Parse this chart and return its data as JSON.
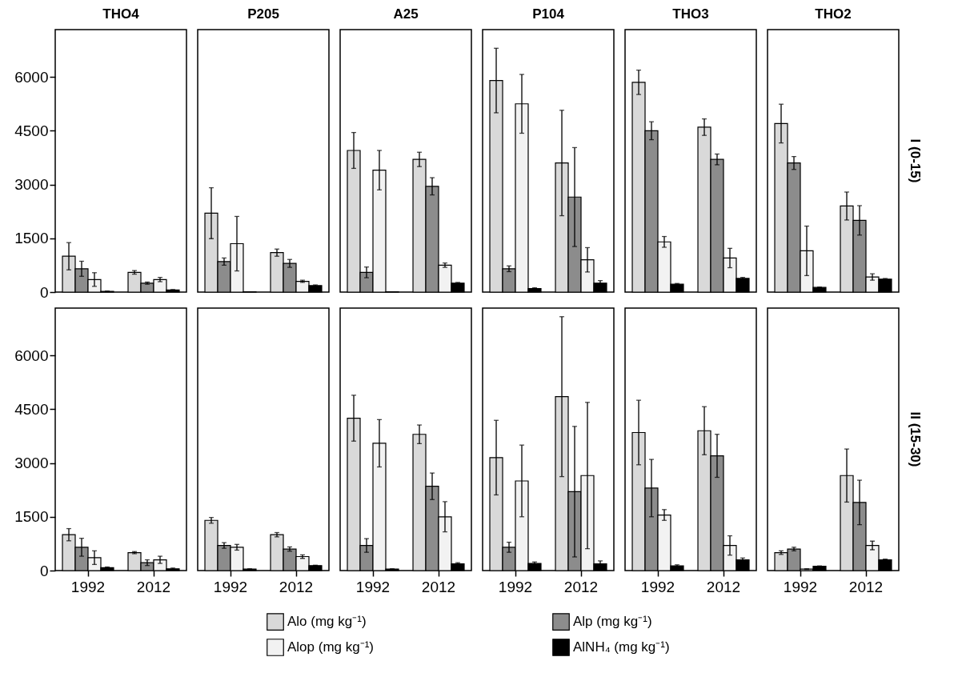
{
  "chart_data": [
    {
      "type": "bar",
      "title": "THO4",
      "categories": [
        "1992",
        "2012"
      ],
      "ylim": [
        0,
        7320
      ],
      "yticks": [
        0,
        1500,
        3000,
        4500,
        6000
      ],
      "tick_labels": "y",
      "legend": "bottom",
      "series": [
        {
          "name": "Alo (mg kg⁻¹)",
          "color": "#d9d9d9",
          "values": [
            1000,
            550
          ],
          "errors": [
            380,
            50
          ]
        },
        {
          "name": "Alp (mg kg⁻¹)",
          "color": "#8c8c8c",
          "values": [
            650,
            250
          ],
          "errors": [
            210,
            30
          ]
        },
        {
          "name": "Alop (mg kg⁻¹)",
          "color": "#f2f2f2",
          "values": [
            350,
            350
          ],
          "errors": [
            190,
            60
          ]
        },
        {
          "name": "AlNH₄ (mg kg⁻¹)",
          "color": "#000000",
          "values": [
            20,
            60
          ],
          "errors": [
            10,
            10
          ]
        }
      ]
    },
    {
      "type": "bar",
      "title": "P205",
      "categories": [
        "1992",
        "2012"
      ],
      "ylim": [
        0,
        7320
      ],
      "yticks": [
        0,
        1500,
        3000,
        4500,
        6000
      ],
      "tick_labels": false,
      "series": [
        {
          "name": "Alo (mg kg⁻¹)",
          "color": "#d9d9d9",
          "values": [
            2200,
            1100
          ],
          "errors": [
            710,
            100
          ]
        },
        {
          "name": "Alp (mg kg⁻¹)",
          "color": "#8c8c8c",
          "values": [
            850,
            800
          ],
          "errors": [
            100,
            110
          ]
        },
        {
          "name": "Alop (mg kg⁻¹)",
          "color": "#f2f2f2",
          "values": [
            1350,
            300
          ],
          "errors": [
            760,
            30
          ]
        },
        {
          "name": "AlNH₄ (mg kg⁻¹)",
          "color": "#000000",
          "values": [
            10,
            180
          ],
          "errors": [
            null,
            20
          ]
        }
      ]
    },
    {
      "type": "bar",
      "title": "A25",
      "categories": [
        "1992",
        "2012"
      ],
      "ylim": [
        0,
        7320
      ],
      "yticks": [
        0,
        1500,
        3000,
        4500,
        6000
      ],
      "tick_labels": false,
      "series": [
        {
          "name": "Alo (mg kg⁻¹)",
          "color": "#d9d9d9",
          "values": [
            3950,
            3700
          ],
          "errors": [
            500,
            200
          ]
        },
        {
          "name": "Alp (mg kg⁻¹)",
          "color": "#8c8c8c",
          "values": [
            550,
            2950
          ],
          "errors": [
            150,
            240
          ]
        },
        {
          "name": "Alop (mg kg⁻¹)",
          "color": "#f2f2f2",
          "values": [
            3400,
            750
          ],
          "errors": [
            550,
            60
          ]
        },
        {
          "name": "AlNH₄ (mg kg⁻¹)",
          "color": "#000000",
          "values": [
            10,
            250
          ],
          "errors": [
            null,
            20
          ]
        }
      ]
    },
    {
      "type": "bar",
      "title": "P104",
      "categories": [
        "1992",
        "2012"
      ],
      "ylim": [
        0,
        7320
      ],
      "yticks": [
        0,
        1500,
        3000,
        4500,
        6000
      ],
      "tick_labels": false,
      "series": [
        {
          "name": "Alo (mg kg⁻¹)",
          "color": "#d9d9d9",
          "values": [
            5900,
            3600
          ],
          "errors": [
            900,
            1470
          ]
        },
        {
          "name": "Alp (mg kg⁻¹)",
          "color": "#8c8c8c",
          "values": [
            650,
            2650
          ],
          "errors": [
            80,
            1380
          ]
        },
        {
          "name": "Alop (mg kg⁻¹)",
          "color": "#f2f2f2",
          "values": [
            5250,
            900
          ],
          "errors": [
            820,
            340
          ]
        },
        {
          "name": "AlNH₄ (mg kg⁻¹)",
          "color": "#000000",
          "values": [
            100,
            250
          ],
          "errors": [
            20,
            70
          ]
        }
      ]
    },
    {
      "type": "bar",
      "title": "THO3",
      "categories": [
        "1992",
        "2012"
      ],
      "ylim": [
        0,
        7320
      ],
      "yticks": [
        0,
        1500,
        3000,
        4500,
        6000
      ],
      "tick_labels": false,
      "series": [
        {
          "name": "Alo (mg kg⁻¹)",
          "color": "#d9d9d9",
          "values": [
            5850,
            4600
          ],
          "errors": [
            340,
            230
          ]
        },
        {
          "name": "Alp (mg kg⁻¹)",
          "color": "#8c8c8c",
          "values": [
            4500,
            3700
          ],
          "errors": [
            250,
            150
          ]
        },
        {
          "name": "Alop (mg kg⁻¹)",
          "color": "#f2f2f2",
          "values": [
            1400,
            950
          ],
          "errors": [
            150,
            270
          ]
        },
        {
          "name": "AlNH₄ (mg kg⁻¹)",
          "color": "#000000",
          "values": [
            220,
            380
          ],
          "errors": [
            20,
            30
          ]
        }
      ]
    },
    {
      "type": "bar",
      "title": "THO2",
      "y2label": "I (0-15)",
      "categories": [
        "1992",
        "2012"
      ],
      "ylim": [
        0,
        7320
      ],
      "yticks": [
        0,
        1500,
        3000,
        4500,
        6000
      ],
      "tick_labels": false,
      "series": [
        {
          "name": "Alo (mg kg⁻¹)",
          "color": "#d9d9d9",
          "values": [
            4700,
            2400
          ],
          "errors": [
            540,
            390
          ]
        },
        {
          "name": "Alp (mg kg⁻¹)",
          "color": "#8c8c8c",
          "values": [
            3600,
            2000
          ],
          "errors": [
            180,
            410
          ]
        },
        {
          "name": "Alop (mg kg⁻¹)",
          "color": "#f2f2f2",
          "values": [
            1150,
            420
          ],
          "errors": [
            690,
            90
          ]
        },
        {
          "name": "AlNH₄ (mg kg⁻¹)",
          "color": "#000000",
          "values": [
            130,
            360
          ],
          "errors": [
            10,
            20
          ]
        }
      ]
    },
    {
      "type": "bar",
      "categories": [
        "1992",
        "2012"
      ],
      "ylim": [
        0,
        7320
      ],
      "yticks": [
        0,
        1500,
        3000,
        4500,
        6000
      ],
      "series": [
        {
          "name": "Alo (mg kg⁻¹)",
          "color": "#d9d9d9",
          "values": [
            1000,
            500
          ],
          "errors": [
            170,
            30
          ]
        },
        {
          "name": "Alp (mg kg⁻¹)",
          "color": "#8c8c8c",
          "values": [
            650,
            220
          ],
          "errors": [
            250,
            80
          ]
        },
        {
          "name": "Alop (mg kg⁻¹)",
          "color": "#f2f2f2",
          "values": [
            360,
            300
          ],
          "errors": [
            190,
            100
          ]
        },
        {
          "name": "AlNH₄ (mg kg⁻¹)",
          "color": "#000000",
          "values": [
            80,
            50
          ],
          "errors": [
            20,
            20
          ]
        }
      ]
    },
    {
      "type": "bar",
      "categories": [
        "1992",
        "2012"
      ],
      "ylim": [
        0,
        7320
      ],
      "yticks": [
        0,
        1500,
        3000,
        4500,
        6000
      ],
      "tick_labels": "x",
      "series": [
        {
          "name": "Alo (mg kg⁻¹)",
          "color": "#d9d9d9",
          "values": [
            1400,
            1000
          ],
          "errors": [
            80,
            60
          ]
        },
        {
          "name": "Alp (mg kg⁻¹)",
          "color": "#8c8c8c",
          "values": [
            700,
            600
          ],
          "errors": [
            80,
            60
          ]
        },
        {
          "name": "Alop (mg kg⁻¹)",
          "color": "#f2f2f2",
          "values": [
            650,
            390
          ],
          "errors": [
            80,
            50
          ]
        },
        {
          "name": "AlNH₄ (mg kg⁻¹)",
          "color": "#000000",
          "values": [
            40,
            140
          ],
          "errors": [
            10,
            10
          ]
        }
      ]
    },
    {
      "type": "bar",
      "categories": [
        "1992",
        "2012"
      ],
      "ylim": [
        0,
        7320
      ],
      "yticks": [
        0,
        1500,
        3000,
        4500,
        6000
      ],
      "tick_labels": "x",
      "series": [
        {
          "name": "Alo (mg kg⁻¹)",
          "color": "#d9d9d9",
          "values": [
            4250,
            3800
          ],
          "errors": [
            640,
            260
          ]
        },
        {
          "name": "Alp (mg kg⁻¹)",
          "color": "#8c8c8c",
          "values": [
            700,
            2350
          ],
          "errors": [
            190,
            370
          ]
        },
        {
          "name": "Alop (mg kg⁻¹)",
          "color": "#f2f2f2",
          "values": [
            3550,
            1500
          ],
          "errors": [
            660,
            420
          ]
        },
        {
          "name": "AlNH₄ (mg kg⁻¹)",
          "color": "#000000",
          "values": [
            40,
            190
          ],
          "errors": [
            10,
            30
          ]
        }
      ]
    },
    {
      "type": "bar",
      "categories": [
        "1992",
        "2012"
      ],
      "ylim": [
        0,
        7320
      ],
      "yticks": [
        0,
        1500,
        3000,
        4500,
        6000
      ],
      "tick_labels": "x",
      "series": [
        {
          "name": "Alo (mg kg⁻¹)",
          "color": "#d9d9d9",
          "values": [
            3150,
            4850
          ],
          "errors": [
            1040,
            2230
          ]
        },
        {
          "name": "Alp (mg kg⁻¹)",
          "color": "#8c8c8c",
          "values": [
            650,
            2200
          ],
          "errors": [
            140,
            1820
          ]
        },
        {
          "name": "Alop (mg kg⁻¹)",
          "color": "#f2f2f2",
          "values": [
            2500,
            2650
          ],
          "errors": [
            1000,
            2040
          ]
        },
        {
          "name": "AlNH₄ (mg kg⁻¹)",
          "color": "#000000",
          "values": [
            200,
            190
          ],
          "errors": [
            40,
            80
          ]
        }
      ]
    },
    {
      "type": "bar",
      "categories": [
        "1992",
        "2012"
      ],
      "ylim": [
        0,
        7320
      ],
      "yticks": [
        0,
        1500,
        3000,
        4500,
        6000
      ],
      "tick_labels": "x",
      "series": [
        {
          "name": "Alo (mg kg⁻¹)",
          "color": "#d9d9d9",
          "values": [
            3850,
            3900
          ],
          "errors": [
            900,
            670
          ]
        },
        {
          "name": "Alp (mg kg⁻¹)",
          "color": "#8c8c8c",
          "values": [
            2300,
            3200
          ],
          "errors": [
            800,
            600
          ]
        },
        {
          "name": "Alop (mg kg⁻¹)",
          "color": "#f2f2f2",
          "values": [
            1550,
            700
          ],
          "errors": [
            150,
            270
          ]
        },
        {
          "name": "AlNH₄ (mg kg⁻¹)",
          "color": "#000000",
          "values": [
            130,
            300
          ],
          "errors": [
            30,
            50
          ]
        }
      ]
    },
    {
      "type": "bar",
      "y2label": "II (15-30)",
      "categories": [
        "1992",
        "2012"
      ],
      "ylim": [
        0,
        7320
      ],
      "yticks": [
        0,
        1500,
        3000,
        4500,
        6000
      ],
      "tick_labels": "x",
      "series": [
        {
          "name": "Alo (mg kg⁻¹)",
          "color": "#d9d9d9",
          "values": [
            500,
            2650
          ],
          "errors": [
            50,
            740
          ]
        },
        {
          "name": "Alp (mg kg⁻¹)",
          "color": "#8c8c8c",
          "values": [
            600,
            1900
          ],
          "errors": [
            50,
            620
          ]
        },
        {
          "name": "Alop (mg kg⁻¹)",
          "color": "#f2f2f2",
          "values": [
            40,
            700
          ],
          "errors": [
            10,
            120
          ]
        },
        {
          "name": "AlNH₄ (mg kg⁻¹)",
          "color": "#000000",
          "values": [
            120,
            300
          ],
          "errors": [
            10,
            20
          ]
        }
      ]
    }
  ]
}
